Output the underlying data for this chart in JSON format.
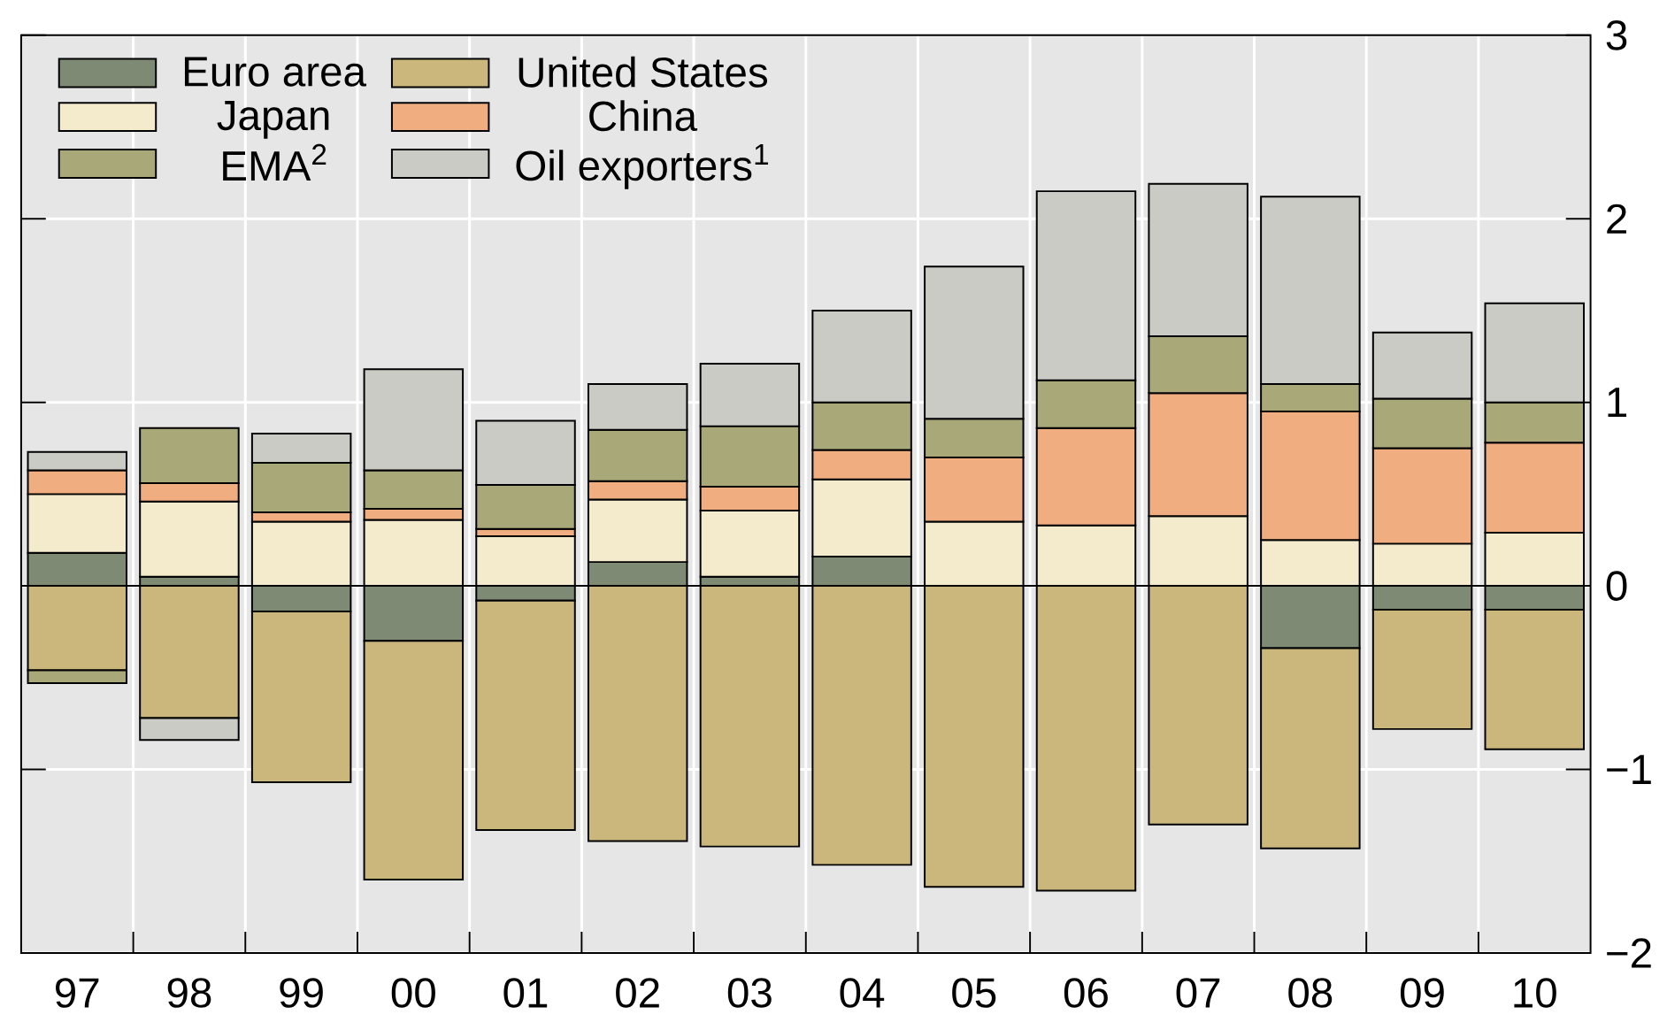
{
  "chart_data": {
    "type": "bar",
    "stacked": true,
    "categories": [
      "97",
      "98",
      "99",
      "00",
      "01",
      "02",
      "03",
      "04",
      "05",
      "06",
      "07",
      "08",
      "09",
      "10"
    ],
    "series": [
      {
        "name": "Euro area",
        "color": "#7e8a73",
        "values": [
          0.18,
          0.05,
          -0.14,
          -0.3,
          -0.08,
          0.13,
          0.05,
          0.16,
          null,
          0,
          null,
          -0.34,
          -0.13,
          -0.13
        ]
      },
      {
        "name": "United States",
        "color": "#cbb67c",
        "values": [
          -0.46,
          -0.72,
          -0.93,
          -1.3,
          -1.25,
          -1.39,
          -1.42,
          -1.52,
          -1.64,
          -1.66,
          -1.3,
          -1.09,
          -0.65,
          -0.76
        ]
      },
      {
        "name": "Japan",
        "color": "#f3ebcb",
        "values": [
          0.32,
          0.41,
          0.35,
          0.36,
          0.27,
          0.34,
          0.36,
          0.42,
          0.35,
          0.33,
          0.38,
          0.25,
          0.23,
          0.29
        ]
      },
      {
        "name": "China",
        "color": "#f0ae80",
        "values": [
          0.13,
          0.1,
          0.05,
          0.06,
          0.04,
          0.1,
          0.13,
          0.16,
          0.35,
          0.53,
          0.67,
          0.7,
          0.52,
          0.49
        ]
      },
      {
        "name": "EMA$^{2}$",
        "color": "#a8a878",
        "values": [
          -0.07,
          0.3,
          0.27,
          0.21,
          0.24,
          0.28,
          0.33,
          0.26,
          0.21,
          0.26,
          0.31,
          0.15,
          0.27,
          0.22
        ]
      },
      {
        "name": "Oil exporters$^{1}$",
        "color": "#cbcbc5",
        "values": [
          0.1,
          -0.12,
          0.16,
          0.55,
          0.35,
          0.25,
          0.34,
          0.5,
          0.83,
          1.03,
          0.83,
          1.02,
          0.36,
          0.54
        ]
      }
    ],
    "ylim": [
      -2,
      3
    ],
    "yticks": [
      {
        "value": -2,
        "label": "−2"
      },
      {
        "value": -1,
        "label": "−1"
      },
      0,
      1,
      2,
      3
    ],
    "grid": true,
    "legend": "top left"
  }
}
